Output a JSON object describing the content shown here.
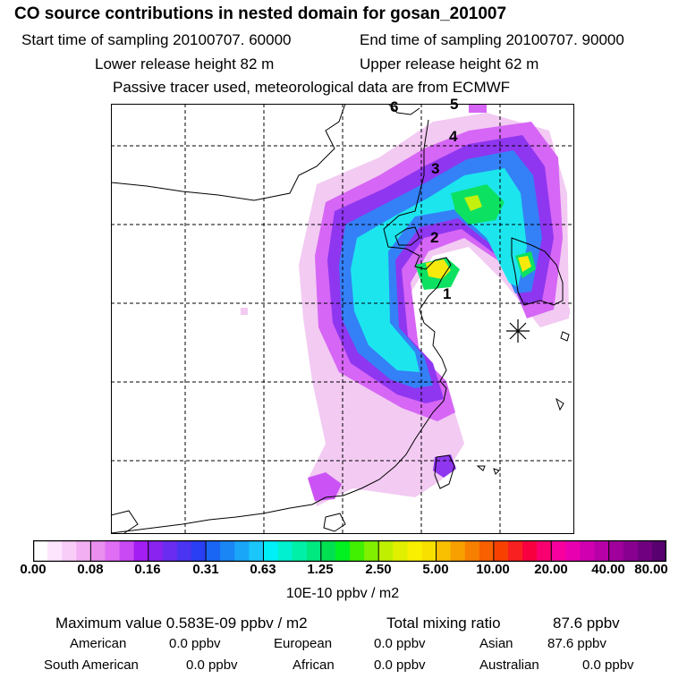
{
  "header": {
    "title": "CO  source contributions in nested domain for gosan_201007",
    "start_label": "Start time of sampling 20100707. 60000",
    "end_label": "End time of sampling 20100707. 90000",
    "lower_label": "Lower release height   82 m",
    "upper_label": "Upper release height   62 m",
    "tracer_note": "Passive tracer used, meteorological data are from ECMWF"
  },
  "map": {
    "trajectory_labels": [
      "1",
      "2",
      "3",
      "4",
      "5",
      "6"
    ],
    "receptor_marker": "station-star-icon",
    "colors": {
      "coast": "#000000",
      "grid": "#000000"
    }
  },
  "colorbar": {
    "tick_labels": [
      "0.00",
      "0.08",
      "0.16",
      "0.31",
      "0.63",
      "1.25",
      "2.50",
      "5.00",
      "10.00",
      "20.00",
      "40.00",
      "80.00"
    ],
    "unit": "10E-10 ppbv / m2",
    "colors": [
      "#ffffff",
      "#fde6fd",
      "#f8cdf8",
      "#f2b0f2",
      "#ea8ef0",
      "#e06ef5",
      "#c94af5",
      "#a31ef3",
      "#8a22f0",
      "#6a2cf0",
      "#4a34f2",
      "#2a3ef4",
      "#1a66f4",
      "#1a86f6",
      "#1aa6f8",
      "#1ac6fa",
      "#00f0f8",
      "#00f0d0",
      "#00f0a8",
      "#00e880",
      "#00e050",
      "#00f020",
      "#40f000",
      "#80f000",
      "#c0f000",
      "#e0f000",
      "#f8f000",
      "#f8e000",
      "#f8c000",
      "#f8a000",
      "#f88000",
      "#f86000",
      "#f84000",
      "#f82020",
      "#f80040",
      "#f80070",
      "#f800a0",
      "#e800b0",
      "#d000b0",
      "#b800a8",
      "#a0009c",
      "#880090",
      "#700080",
      "#580070"
    ]
  },
  "summary": {
    "max_label": "Maximum value  0.583E-09 ppbv / m2",
    "total_label": "Total mixing ratio",
    "total_value": "87.6 ppbv",
    "regions": [
      {
        "name": "American",
        "value": "0.0 ppbv"
      },
      {
        "name": "European",
        "value": "0.0 ppbv"
      },
      {
        "name": "Asian",
        "value": "87.6 ppbv"
      },
      {
        "name": "South American",
        "value": "0.0 ppbv"
      },
      {
        "name": "African",
        "value": "0.0 ppbv"
      },
      {
        "name": "Australian",
        "value": "0.0 ppbv"
      }
    ]
  }
}
